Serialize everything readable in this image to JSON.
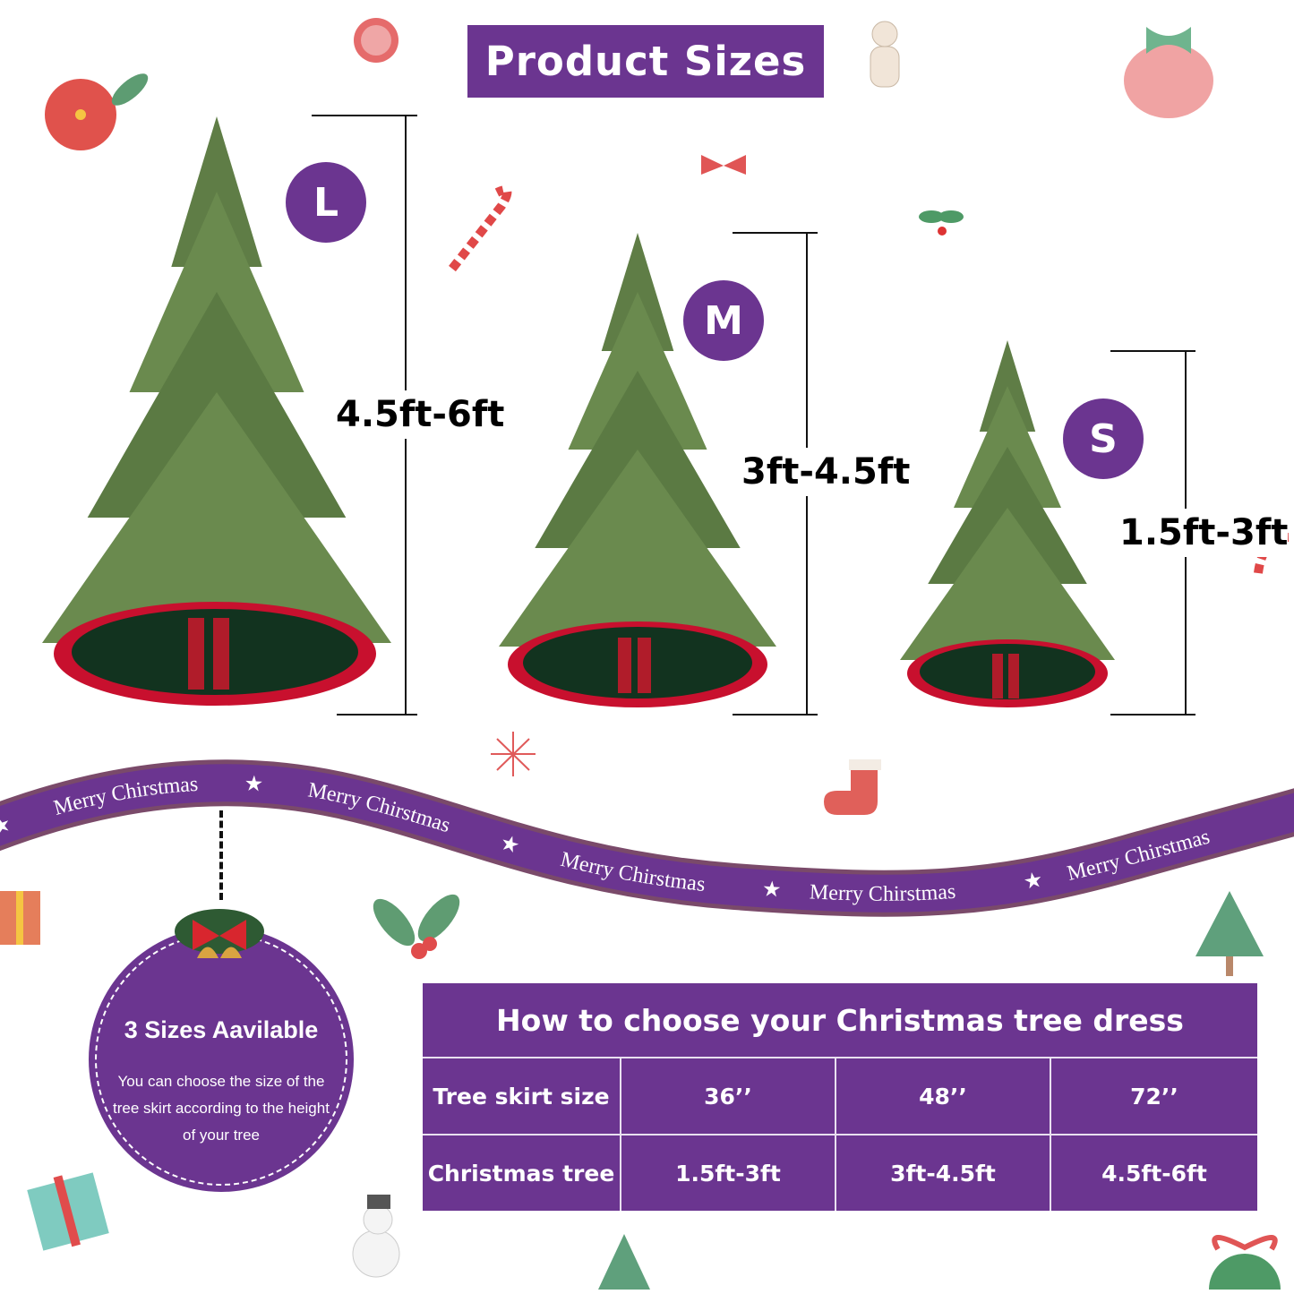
{
  "title": "Product Sizes",
  "sizes": [
    {
      "badge": "L",
      "height": "4.5ft-6ft"
    },
    {
      "badge": "M",
      "height": "3ft-4.5ft"
    },
    {
      "badge": "S",
      "height": "1.5ft-3ft"
    }
  ],
  "ribbon": {
    "texts": [
      "Merry Chirstmas",
      "Merry Chirstmas",
      "Merry Chirstmas",
      "Merry Chirstmas",
      "Merry Chirstmas"
    ],
    "star": "★"
  },
  "badge": {
    "title": "3 Sizes Aavilable",
    "text": "You can choose the size of the tree skirt according to the height of your tree"
  },
  "table": {
    "header": "How to choose your Christmas tree dress",
    "rows": [
      [
        "Tree skirt size",
        "36’’",
        "48’’",
        "72’’"
      ],
      [
        "Christmas tree",
        "1.5ft-3ft",
        "3ft-4.5ft",
        "4.5ft-6ft"
      ]
    ]
  },
  "colors": {
    "accent": "#6b3590",
    "skirt_red": "#c8102e",
    "skirt_green": "#12331f",
    "tree_green": "#5f7d46"
  }
}
